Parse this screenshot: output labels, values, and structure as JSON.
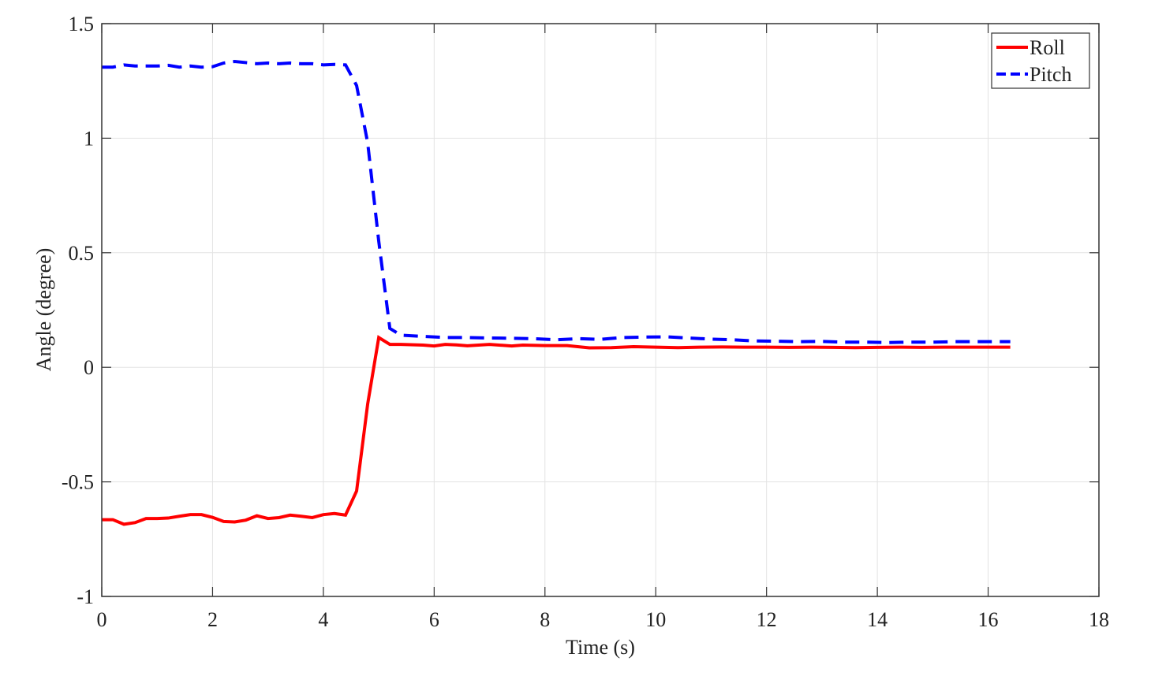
{
  "chart_data": {
    "type": "line",
    "xlabel": "Time (s)",
    "ylabel": "Angle (degree)",
    "xlim": [
      0,
      18
    ],
    "xticks": [
      0,
      2,
      4,
      6,
      8,
      10,
      12,
      14,
      16,
      18
    ],
    "ylim": [
      -1,
      1.5
    ],
    "yticks": [
      -1,
      -0.5,
      0,
      0.5,
      1,
      1.5
    ],
    "grid": true,
    "legend": "upper right",
    "series": [
      {
        "name": "Roll",
        "color": "#ff0000",
        "dash": "solid",
        "x": [
          0,
          0.2,
          0.4,
          0.6,
          0.8,
          1.0,
          1.2,
          1.4,
          1.6,
          1.8,
          2.0,
          2.2,
          2.4,
          2.6,
          2.8,
          3.0,
          3.2,
          3.4,
          3.6,
          3.8,
          4.0,
          4.2,
          4.4,
          4.6,
          4.8,
          5.0,
          5.2,
          5.4,
          5.8,
          6.0,
          6.2,
          6.4,
          6.6,
          7.0,
          7.4,
          7.6,
          8.0,
          8.4,
          8.8,
          9.2,
          9.6,
          10,
          10.4,
          10.8,
          11.2,
          11.6,
          12,
          12.4,
          12.8,
          13.2,
          13.6,
          14,
          14.4,
          14.8,
          15.2,
          15.6,
          16,
          16.4
        ],
        "values": [
          -0.665,
          -0.665,
          -0.685,
          -0.678,
          -0.66,
          -0.66,
          -0.658,
          -0.65,
          -0.643,
          -0.643,
          -0.655,
          -0.673,
          -0.675,
          -0.667,
          -0.648,
          -0.66,
          -0.656,
          -0.645,
          -0.65,
          -0.656,
          -0.643,
          -0.638,
          -0.645,
          -0.54,
          -0.16,
          0.13,
          0.1,
          0.1,
          0.097,
          0.093,
          0.1,
          0.098,
          0.094,
          0.1,
          0.093,
          0.097,
          0.095,
          0.095,
          0.085,
          0.086,
          0.09,
          0.088,
          0.086,
          0.088,
          0.089,
          0.088,
          0.088,
          0.087,
          0.088,
          0.087,
          0.086,
          0.087,
          0.088,
          0.087,
          0.088,
          0.088,
          0.088,
          0.088
        ]
      },
      {
        "name": "Pitch",
        "color": "#0000ff",
        "dash": "dashed",
        "x": [
          0,
          0.2,
          0.4,
          0.6,
          0.8,
          1.0,
          1.2,
          1.4,
          1.6,
          1.8,
          2.0,
          2.2,
          2.4,
          2.6,
          2.8,
          3.0,
          3.2,
          3.4,
          3.6,
          3.8,
          4.0,
          4.2,
          4.4,
          4.6,
          4.8,
          5.0,
          5.2,
          5.4,
          5.8,
          6.2,
          6.6,
          7.0,
          7.4,
          7.8,
          8.2,
          8.6,
          9.0,
          9.4,
          9.8,
          10.2,
          10.6,
          11.0,
          11.4,
          11.8,
          12.2,
          12.6,
          13.0,
          13.4,
          13.8,
          14.2,
          14.6,
          15.0,
          15.4,
          15.8,
          16.4
        ],
        "values": [
          1.31,
          1.31,
          1.32,
          1.315,
          1.315,
          1.315,
          1.318,
          1.31,
          1.315,
          1.31,
          1.312,
          1.328,
          1.335,
          1.33,
          1.325,
          1.328,
          1.325,
          1.328,
          1.325,
          1.325,
          1.32,
          1.322,
          1.32,
          1.23,
          0.98,
          0.55,
          0.17,
          0.14,
          0.135,
          0.13,
          0.13,
          0.128,
          0.127,
          0.125,
          0.12,
          0.125,
          0.122,
          0.13,
          0.132,
          0.133,
          0.128,
          0.123,
          0.12,
          0.115,
          0.114,
          0.112,
          0.113,
          0.11,
          0.11,
          0.108,
          0.11,
          0.11,
          0.112,
          0.112,
          0.112
        ]
      }
    ]
  }
}
